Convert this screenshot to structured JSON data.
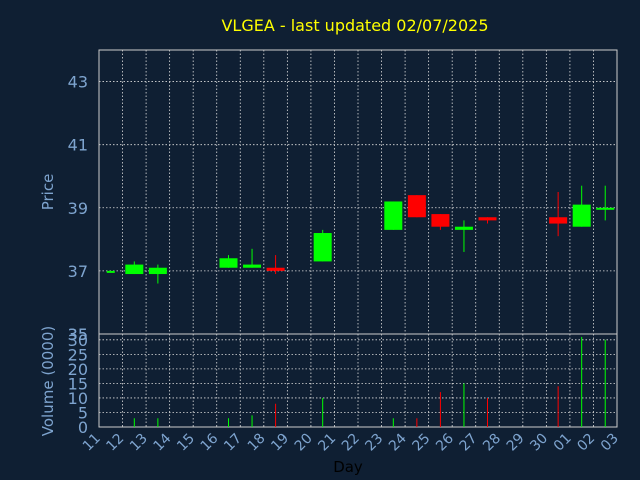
{
  "chart_data": {
    "type": "candlestick",
    "title": "VLGEA - last updated 02/07/2025",
    "xlabel": "Day",
    "ylabel_price": "Price",
    "ylabel_volume": "Volume (0000)",
    "price_ylim": [
      35,
      44
    ],
    "price_ticks": [
      "43",
      "41",
      "39",
      "37",
      "35"
    ],
    "volume_ylim": [
      0,
      32
    ],
    "volume_ticks": [
      "35",
      "30",
      "25",
      "20",
      "15",
      "10",
      "5",
      "0"
    ],
    "x_ticks": [
      "11",
      "12",
      "13",
      "14",
      "15",
      "16",
      "17",
      "18",
      "19",
      "20",
      "21",
      "22",
      "23",
      "24",
      "25",
      "26",
      "27",
      "28",
      "29",
      "30",
      "01",
      "02",
      "03"
    ],
    "grid": true,
    "colors": {
      "background": "#0f1f33",
      "title": "#ffff00",
      "axis_text": "#7ea4cf",
      "label_text": "#7ea4cf",
      "x_label_text": "#000000",
      "frame": "#cccccc",
      "grid": "#dddddd",
      "up": "#00ff00",
      "down": "#ff0000"
    },
    "candles": [
      {
        "x": "11",
        "open": 37.0,
        "high": 37.0,
        "low": 37.0,
        "close": 37.0,
        "volume": 0
      },
      {
        "x": "12",
        "open": 36.9,
        "high": 37.3,
        "low": 36.9,
        "close": 37.2,
        "volume": 3
      },
      {
        "x": "13",
        "open": 36.9,
        "high": 37.2,
        "low": 36.6,
        "close": 37.1,
        "volume": 3
      },
      {
        "x": "16",
        "open": 37.1,
        "high": 37.5,
        "low": 37.1,
        "close": 37.4,
        "volume": 3
      },
      {
        "x": "17",
        "open": 37.1,
        "high": 37.7,
        "low": 37.1,
        "close": 37.2,
        "volume": 4
      },
      {
        "x": "18",
        "open": 37.1,
        "high": 37.5,
        "low": 36.9,
        "close": 37.0,
        "volume": 8
      },
      {
        "x": "20",
        "open": 37.3,
        "high": 38.3,
        "low": 37.3,
        "close": 38.2,
        "volume": 10
      },
      {
        "x": "23",
        "open": 38.3,
        "high": 39.2,
        "low": 38.3,
        "close": 39.2,
        "volume": 3
      },
      {
        "x": "24",
        "open": 39.4,
        "high": 39.4,
        "low": 38.7,
        "close": 38.7,
        "volume": 3
      },
      {
        "x": "25",
        "open": 38.8,
        "high": 38.8,
        "low": 38.3,
        "close": 38.4,
        "volume": 12
      },
      {
        "x": "26",
        "open": 38.3,
        "high": 38.6,
        "low": 37.6,
        "close": 38.4,
        "volume": 15
      },
      {
        "x": "27",
        "open": 38.7,
        "high": 38.7,
        "low": 38.5,
        "close": 38.6,
        "volume": 10
      },
      {
        "x": "30",
        "open": 38.7,
        "high": 39.5,
        "low": 38.1,
        "close": 38.5,
        "volume": 14
      },
      {
        "x": "01",
        "open": 38.4,
        "high": 39.7,
        "low": 38.4,
        "close": 39.1,
        "volume": 31
      },
      {
        "x": "02",
        "open": 39.0,
        "high": 39.7,
        "low": 38.6,
        "close": 39.0,
        "volume": 30
      }
    ]
  }
}
